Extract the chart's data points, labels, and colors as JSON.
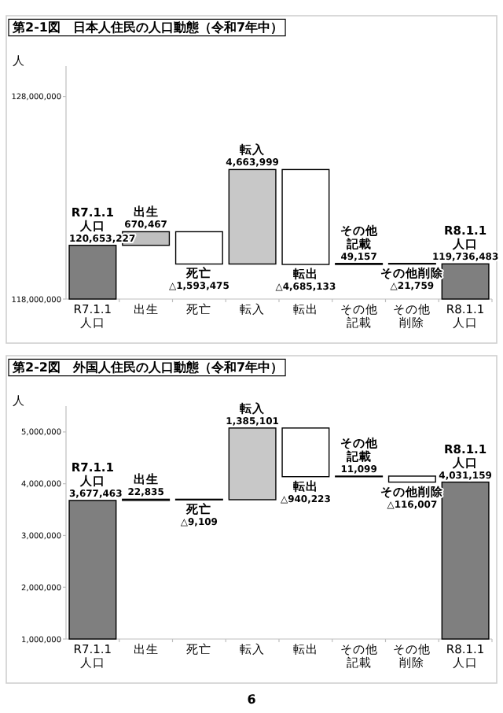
{
  "chart_data": [
    {
      "type": "bar",
      "title": "第2-1図　日本人住民の人口動態（令和7年中）",
      "ylabel": "人",
      "categories": [
        "R7.1.1人口",
        "出生",
        "死亡",
        "転入",
        "転出",
        "その他記載",
        "その他削除",
        "R8.1.1人口"
      ],
      "values": [
        120653227,
        670467,
        -1593475,
        4663999,
        -4685133,
        49157,
        -21759,
        119736483
      ],
      "base": [
        null,
        120653227,
        121323694,
        119730219,
        124394218,
        119709085,
        119758242,
        null
      ],
      "value_labels": [
        "120,653,227",
        "670,467",
        "△1,593,475",
        "4,663,999",
        "△4,685,133",
        "49,157",
        "△21,759",
        "119,736,483"
      ],
      "colors": [
        "#7f7f7f",
        "#bfbfbf",
        "#ffffff",
        "#c8c8c8",
        "#ffffff",
        "#ffffff",
        "#ffffff",
        "#7f7f7f"
      ],
      "ylim": [
        118000000,
        129500000
      ],
      "yticks": [
        {
          "value": 118000000,
          "label": "118,000,000"
        },
        {
          "value": 128000000,
          "label": "128,000,000"
        }
      ],
      "grid": false,
      "legend": false
    },
    {
      "type": "bar",
      "title": "第2-2図　外国人住民の人口動態（令和7年中）",
      "ylabel": "人",
      "categories": [
        "R7.1.1人口",
        "出生",
        "死亡",
        "転入",
        "転出",
        "その他記載",
        "その他削除",
        "R8.1.1人口"
      ],
      "values": [
        3677463,
        22835,
        -9109,
        1385101,
        -940223,
        11099,
        -116007,
        4031159
      ],
      "base": [
        null,
        3677463,
        3700298,
        3691189,
        5076290,
        4136067,
        4147166,
        null
      ],
      "value_labels": [
        "3,677,463",
        "22,835",
        "△9,109",
        "1,385,101",
        "△940,223",
        "11,099",
        "△116,007",
        "4,031,159"
      ],
      "colors": [
        "#7f7f7f",
        "#bfbfbf",
        "#ffffff",
        "#c8c8c8",
        "#ffffff",
        "#ffffff",
        "#ffffff",
        "#7f7f7f"
      ],
      "ylim": [
        1000000,
        5500000
      ],
      "yticks": [
        {
          "value": 1000000,
          "label": "1,000,000"
        },
        {
          "value": 2000000,
          "label": "2,000,000"
        },
        {
          "value": 3000000,
          "label": "3,000,000"
        },
        {
          "value": 4000000,
          "label": "4,000,000"
        },
        {
          "value": 5000000,
          "label": "5,000,000"
        }
      ],
      "grid": false,
      "legend": false,
      "annotations": [
        "6"
      ]
    }
  ]
}
